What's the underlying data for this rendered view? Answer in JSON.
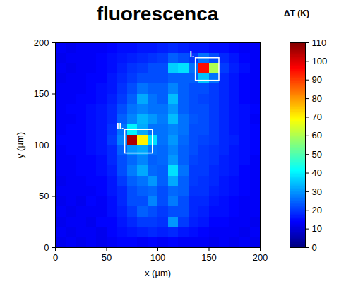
{
  "chart_data": {
    "type": "heatmap",
    "title": "fluorescenca",
    "x_label": "x (µm)",
    "y_label": "y (µm)",
    "xlim": [
      0,
      200
    ],
    "ylim": [
      0,
      200
    ],
    "xticks": [
      0,
      50,
      100,
      150,
      200
    ],
    "yticks": [
      0,
      50,
      100,
      150,
      200
    ],
    "x_edges": [
      0,
      10,
      20,
      30,
      40,
      50,
      60,
      70,
      80,
      90,
      100,
      110,
      120,
      130,
      140,
      150,
      160,
      170,
      180,
      190,
      200
    ],
    "y_edges": [
      0,
      10,
      20,
      30,
      40,
      50,
      60,
      70,
      80,
      90,
      100,
      110,
      120,
      130,
      140,
      150,
      160,
      170,
      180,
      190,
      200
    ],
    "cells": [
      [
        12,
        13,
        12,
        13,
        12,
        13,
        14,
        14,
        13,
        14,
        13,
        14,
        13,
        13,
        13,
        12,
        13,
        12,
        13,
        12
      ],
      [
        13,
        12,
        13,
        13,
        12,
        14,
        15,
        16,
        17,
        18,
        17,
        18,
        16,
        15,
        14,
        13,
        13,
        13,
        12,
        13
      ],
      [
        12,
        13,
        13,
        12,
        14,
        14,
        16,
        18,
        20,
        20,
        19,
        30,
        20,
        17,
        16,
        14,
        14,
        13,
        13,
        12
      ],
      [
        13,
        12,
        13,
        13,
        13,
        15,
        17,
        20,
        24,
        22,
        20,
        22,
        22,
        18,
        17,
        15,
        15,
        14,
        13,
        13
      ],
      [
        12,
        13,
        12,
        14,
        13,
        15,
        18,
        22,
        22,
        28,
        22,
        27,
        22,
        18,
        18,
        16,
        15,
        14,
        13,
        13
      ],
      [
        13,
        13,
        13,
        13,
        14,
        16,
        18,
        22,
        24,
        25,
        22,
        25,
        24,
        19,
        19,
        17,
        16,
        15,
        14,
        13
      ],
      [
        12,
        13,
        13,
        14,
        14,
        16,
        20,
        24,
        26,
        30,
        24,
        32,
        24,
        20,
        19,
        18,
        16,
        15,
        14,
        13
      ],
      [
        13,
        13,
        14,
        14,
        15,
        17,
        22,
        27,
        32,
        25,
        24,
        38,
        26,
        20,
        20,
        18,
        17,
        16,
        14,
        13
      ],
      [
        13,
        13,
        14,
        14,
        15,
        18,
        22,
        25,
        28,
        24,
        25,
        30,
        24,
        21,
        20,
        19,
        17,
        16,
        15,
        13
      ],
      [
        13,
        14,
        14,
        15,
        16,
        18,
        24,
        30,
        32,
        26,
        25,
        28,
        24,
        22,
        20,
        19,
        18,
        16,
        15,
        14
      ],
      [
        14,
        14,
        14,
        15,
        16,
        20,
        28,
        105,
        70,
        38,
        26,
        30,
        25,
        22,
        21,
        20,
        18,
        17,
        15,
        14
      ],
      [
        13,
        14,
        14,
        15,
        16,
        19,
        26,
        40,
        32,
        26,
        26,
        28,
        26,
        22,
        22,
        20,
        18,
        16,
        15,
        14
      ],
      [
        13,
        13,
        14,
        15,
        16,
        18,
        24,
        28,
        33,
        30,
        27,
        34,
        26,
        23,
        22,
        20,
        18,
        16,
        15,
        13
      ],
      [
        13,
        14,
        14,
        15,
        16,
        18,
        22,
        26,
        28,
        26,
        26,
        30,
        24,
        22,
        22,
        20,
        18,
        16,
        15,
        14
      ],
      [
        13,
        13,
        14,
        14,
        15,
        17,
        20,
        24,
        32,
        26,
        24,
        34,
        24,
        22,
        21,
        20,
        18,
        16,
        14,
        13
      ],
      [
        13,
        13,
        13,
        14,
        15,
        16,
        19,
        22,
        26,
        24,
        24,
        28,
        24,
        22,
        22,
        20,
        18,
        16,
        14,
        13
      ],
      [
        12,
        13,
        13,
        14,
        14,
        16,
        18,
        20,
        22,
        22,
        22,
        24,
        24,
        24,
        35,
        26,
        18,
        16,
        14,
        13
      ],
      [
        13,
        12,
        13,
        13,
        14,
        15,
        17,
        19,
        20,
        22,
        22,
        36,
        38,
        26,
        95,
        60,
        20,
        17,
        15,
        13
      ],
      [
        12,
        13,
        13,
        13,
        14,
        15,
        16,
        17,
        18,
        19,
        20,
        24,
        22,
        20,
        26,
        22,
        18,
        16,
        14,
        13
      ],
      [
        13,
        12,
        13,
        13,
        13,
        14,
        15,
        15,
        16,
        16,
        17,
        18,
        17,
        16,
        16,
        15,
        15,
        14,
        13,
        13
      ]
    ],
    "colorbar": {
      "label": "ΔT (K)",
      "range": [
        0,
        110
      ],
      "ticks": [
        0,
        10,
        20,
        30,
        40,
        50,
        60,
        70,
        80,
        90,
        100,
        110
      ]
    },
    "annotations": [
      {
        "label": "I.",
        "x": [
          137,
          160
        ],
        "y": [
          163,
          185
        ]
      },
      {
        "label": "II.",
        "x": [
          68,
          95
        ],
        "y": [
          92,
          115
        ]
      }
    ]
  }
}
